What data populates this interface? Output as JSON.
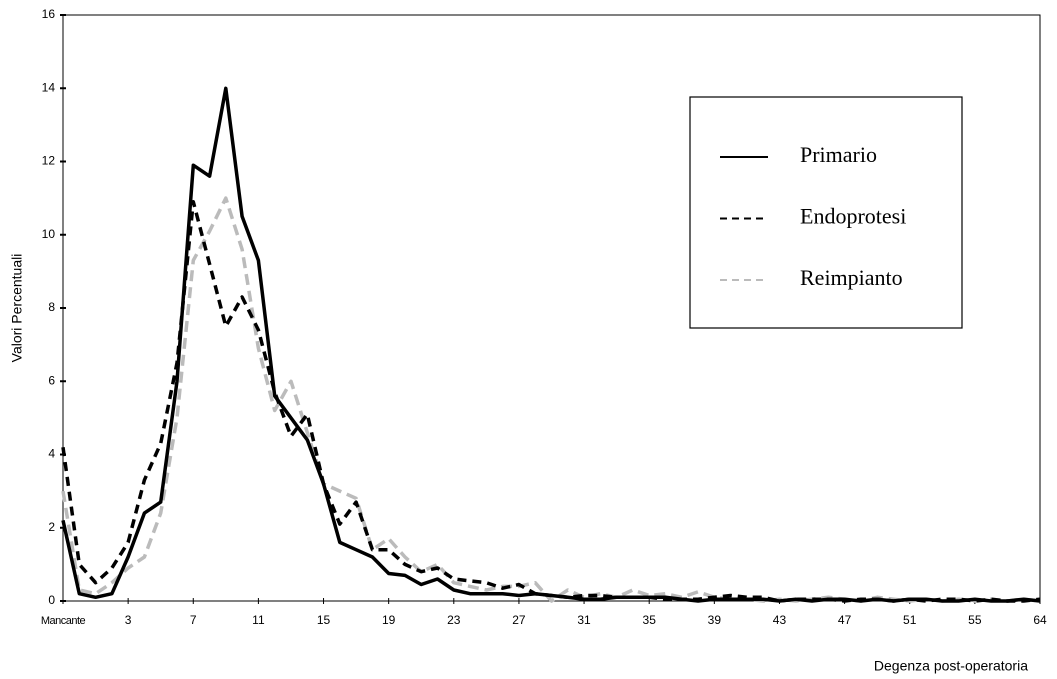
{
  "chart_data": {
    "type": "line",
    "y_label": "Valori Percentuali",
    "x_label": "Degenza post-operatoria",
    "categories": [
      "Mancante",
      null,
      null,
      null,
      "3",
      null,
      null,
      null,
      "7",
      null,
      null,
      null,
      "11",
      null,
      null,
      null,
      "15",
      null,
      null,
      null,
      "19",
      null,
      null,
      null,
      "23",
      null,
      null,
      null,
      "27",
      null,
      null,
      null,
      "31",
      null,
      null,
      null,
      "35",
      null,
      null,
      null,
      "39",
      null,
      null,
      null,
      "43",
      null,
      null,
      null,
      "47",
      null,
      null,
      null,
      "51",
      null,
      null,
      null,
      "55",
      null,
      null,
      null,
      "64"
    ],
    "ylim": [
      0,
      16
    ],
    "yticks": [
      0,
      2,
      4,
      6,
      8,
      10,
      12,
      14,
      16
    ],
    "series": [
      {
        "name": "Primario",
        "color": "#000000",
        "dash": "none",
        "values": [
          2.2,
          0.2,
          0.1,
          0.2,
          1.2,
          2.4,
          2.7,
          6.0,
          11.9,
          11.6,
          14.0,
          10.5,
          9.3,
          5.6,
          5.0,
          4.4,
          3.2,
          1.6,
          1.4,
          1.2,
          0.75,
          0.7,
          0.45,
          0.6,
          0.3,
          0.2,
          0.2,
          0.2,
          0.15,
          0.2,
          0.15,
          0.1,
          0.05,
          0.05,
          0.1,
          0.1,
          0.1,
          0.1,
          0.05,
          0,
          0.05,
          0.05,
          0.05,
          0.05,
          0,
          0.05,
          0,
          0.05,
          0.05,
          0,
          0.05,
          0,
          0.05,
          0.05,
          0,
          0,
          0.05,
          0,
          0,
          0.05,
          0
        ]
      },
      {
        "name": "Endoprotesi",
        "color": "#000000",
        "dash": "9 6",
        "values": [
          4.2,
          1.0,
          0.5,
          0.9,
          1.6,
          3.3,
          4.3,
          6.5,
          10.9,
          9.2,
          7.5,
          8.3,
          7.4,
          5.7,
          4.5,
          5.1,
          3.2,
          2.1,
          2.7,
          1.4,
          1.4,
          1.0,
          0.8,
          0.9,
          0.6,
          0.55,
          0.5,
          0.35,
          0.45,
          0.2,
          0.15,
          0.1,
          0.15,
          0.15,
          0.1,
          0.1,
          0.1,
          0.05,
          0.05,
          0.05,
          0.1,
          0.15,
          0.1,
          0.1,
          0,
          0.05,
          0.05,
          0.05,
          0,
          0.05,
          0.05,
          0,
          0.05,
          0,
          0.05,
          0.05,
          0,
          0.05,
          0,
          0,
          0.05
        ]
      },
      {
        "name": "Reimpianto",
        "color": "#bbbbbb",
        "dash": "11 6",
        "values": [
          3.0,
          0.3,
          0.2,
          0.5,
          0.9,
          1.2,
          2.4,
          5.0,
          9.3,
          10.1,
          11.0,
          9.6,
          6.9,
          5.2,
          6.0,
          4.6,
          3.2,
          3.0,
          2.8,
          1.4,
          1.7,
          1.2,
          0.8,
          1.0,
          0.5,
          0.4,
          0.3,
          0.4,
          0.4,
          0.5,
          0.0,
          0.3,
          0.1,
          0.2,
          0.1,
          0.3,
          0.15,
          0.2,
          0.1,
          0.25,
          0.1,
          0.05,
          0.05,
          0.0,
          0.05,
          0,
          0.05,
          0.1,
          0.05,
          0,
          0.1,
          0.05,
          0,
          0.05,
          0,
          0.05,
          0,
          0.05,
          0,
          0.05,
          0
        ]
      }
    ]
  }
}
